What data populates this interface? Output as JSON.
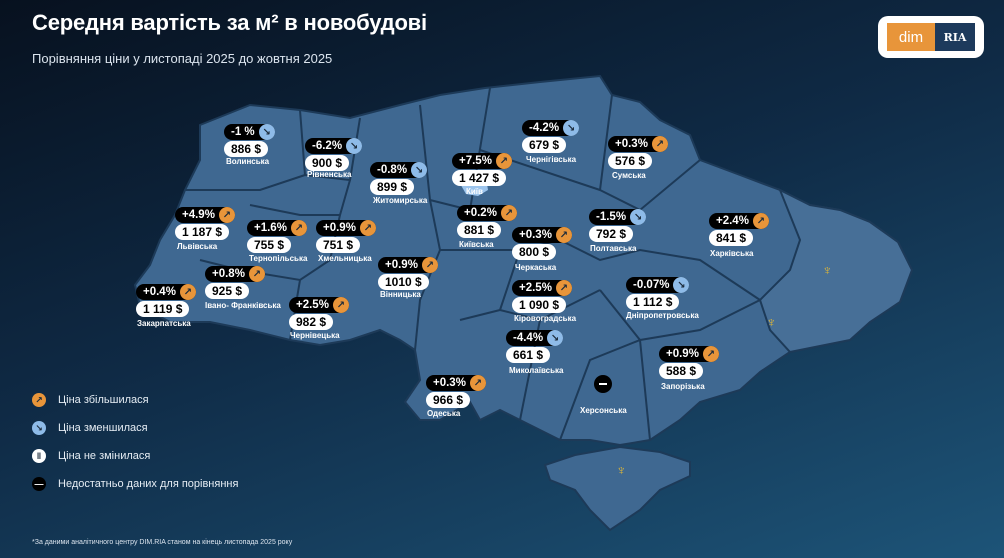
{
  "header": {
    "title": "Середня вартість за м² в новобудові",
    "subtitle": "Порівняння ціни у листопаді 2025 до жовтня 2025"
  },
  "logo": {
    "left": "dim",
    "right": "RIA"
  },
  "colors": {
    "increase": "#e8953a",
    "decrease": "#8ebbe8",
    "unchanged": "#ffffff",
    "no_data": "#000000",
    "map": "#3f6891"
  },
  "regions": [
    {
      "name": "Волинська",
      "change": "-1 %",
      "price": "886 $",
      "trend": "down"
    },
    {
      "name": "Рівненська",
      "change": "-6.2%",
      "price": "900 $",
      "trend": "down"
    },
    {
      "name": "Житомирська",
      "change": "-0.8%",
      "price": "899 $",
      "trend": "down"
    },
    {
      "name": "Київ",
      "change": "+7.5%",
      "price": "1 427 $",
      "trend": "up"
    },
    {
      "name": "Чернігівська",
      "change": "-4.2%",
      "price": "679 $",
      "trend": "down"
    },
    {
      "name": "Сумська",
      "change": "+0.3%",
      "price": "576 $",
      "trend": "up"
    },
    {
      "name": "Львівська",
      "change": "+4.9%",
      "price": "1 187 $",
      "trend": "up"
    },
    {
      "name": "Тернопільська",
      "change": "+1.6%",
      "price": "755 $",
      "trend": "up"
    },
    {
      "name": "Хмельницька",
      "change": "+0.9%",
      "price": "751 $",
      "trend": "up"
    },
    {
      "name": "Київська",
      "change": "+0.2%",
      "price": "881 $",
      "trend": "up"
    },
    {
      "name": "Черкаська",
      "change": "+0.3%",
      "price": "800 $",
      "trend": "up"
    },
    {
      "name": "Полтавська",
      "change": "-1.5%",
      "price": "792 $",
      "trend": "down"
    },
    {
      "name": "Харківська",
      "change": "+2.4%",
      "price": "841 $",
      "trend": "up"
    },
    {
      "name": "Вінницька",
      "change": "+0.9%",
      "price": "1010 $",
      "trend": "up"
    },
    {
      "name": "Кіровоградська",
      "change": "+2.5%",
      "price": "1 090 $",
      "trend": "up"
    },
    {
      "name": "Дніпропетровська",
      "change": "-0.07%",
      "price": "1 112 $",
      "trend": "down"
    },
    {
      "name": "Івано- Франківська",
      "change": "+0.8%",
      "price": "925 $",
      "trend": "up"
    },
    {
      "name": "Закарпатська",
      "change": "+0.4%",
      "price": "1 119 $",
      "trend": "up"
    },
    {
      "name": "Чернівецька",
      "change": "+2.5%",
      "price": "982 $",
      "trend": "up"
    },
    {
      "name": "Миколаївська",
      "change": "-4.4%",
      "price": "661 $",
      "trend": "down"
    },
    {
      "name": "Одеська",
      "change": "+0.3%",
      "price": "966 $",
      "trend": "up"
    },
    {
      "name": "Запорізька",
      "change": "+0.9%",
      "price": "588 $",
      "trend": "up"
    },
    {
      "name": "Херсонська",
      "trend": "no-data"
    }
  ],
  "legend": [
    {
      "label": "Ціна збільшилася",
      "icon": "arrow-up-right-icon"
    },
    {
      "label": "Ціна зменшилася",
      "icon": "arrow-down-right-icon"
    },
    {
      "label": "Ціна не змінилася",
      "icon": "pause-icon"
    },
    {
      "label": "Недостатньо даних для порівняння",
      "icon": "minus-icon"
    }
  ],
  "footnote": "*За даними аналітичного центру DIM.RIA станом на кінець листопада 2025 року"
}
